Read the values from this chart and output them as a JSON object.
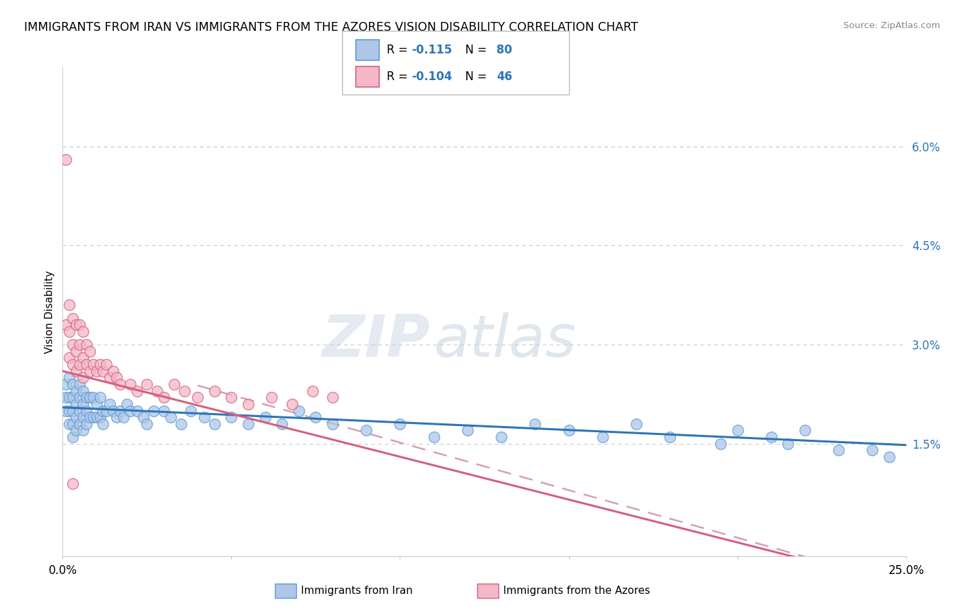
{
  "title": "IMMIGRANTS FROM IRAN VS IMMIGRANTS FROM THE AZORES VISION DISABILITY CORRELATION CHART",
  "source": "Source: ZipAtlas.com",
  "ylabel": "Vision Disability",
  "right_yticks": [
    0.015,
    0.03,
    0.045,
    0.06
  ],
  "right_ytick_labels": [
    "1.5%",
    "3.0%",
    "4.5%",
    "6.0%"
  ],
  "xlim": [
    0.0,
    0.25
  ],
  "ylim": [
    -0.002,
    0.072
  ],
  "iran_fill_color": "#aec6e8",
  "iran_edge_color": "#5b9bd5",
  "azores_fill_color": "#f4b8c8",
  "azores_edge_color": "#d4607e",
  "iran_line_color": "#2e75b6",
  "azores_line_color": "#d4607e",
  "dashed_line_color": "#d4a0b0",
  "iran_R": -0.115,
  "iran_N": 80,
  "azores_R": -0.104,
  "azores_N": 46,
  "watermark_zip": "ZIP",
  "watermark_atlas": "atlas",
  "legend_label_iran": "Immigrants from Iran",
  "legend_label_azores": "Immigrants from the Azores",
  "blue_text_color": "#2e75b6",
  "iran_x": [
    0.001,
    0.001,
    0.001,
    0.002,
    0.002,
    0.002,
    0.002,
    0.003,
    0.003,
    0.003,
    0.003,
    0.003,
    0.004,
    0.004,
    0.004,
    0.004,
    0.005,
    0.005,
    0.005,
    0.005,
    0.006,
    0.006,
    0.006,
    0.006,
    0.007,
    0.007,
    0.007,
    0.008,
    0.008,
    0.009,
    0.009,
    0.01,
    0.01,
    0.011,
    0.011,
    0.012,
    0.012,
    0.013,
    0.014,
    0.015,
    0.016,
    0.017,
    0.018,
    0.019,
    0.02,
    0.022,
    0.024,
    0.025,
    0.027,
    0.03,
    0.032,
    0.035,
    0.038,
    0.042,
    0.045,
    0.05,
    0.055,
    0.06,
    0.065,
    0.07,
    0.075,
    0.08,
    0.09,
    0.1,
    0.11,
    0.12,
    0.13,
    0.14,
    0.15,
    0.16,
    0.17,
    0.18,
    0.195,
    0.2,
    0.21,
    0.215,
    0.22,
    0.23,
    0.24,
    0.245
  ],
  "iran_y": [
    0.024,
    0.022,
    0.02,
    0.025,
    0.022,
    0.02,
    0.018,
    0.024,
    0.022,
    0.02,
    0.018,
    0.016,
    0.023,
    0.021,
    0.019,
    0.017,
    0.024,
    0.022,
    0.02,
    0.018,
    0.023,
    0.021,
    0.019,
    0.017,
    0.022,
    0.02,
    0.018,
    0.022,
    0.019,
    0.022,
    0.019,
    0.021,
    0.019,
    0.022,
    0.019,
    0.02,
    0.018,
    0.02,
    0.021,
    0.02,
    0.019,
    0.02,
    0.019,
    0.021,
    0.02,
    0.02,
    0.019,
    0.018,
    0.02,
    0.02,
    0.019,
    0.018,
    0.02,
    0.019,
    0.018,
    0.019,
    0.018,
    0.019,
    0.018,
    0.02,
    0.019,
    0.018,
    0.017,
    0.018,
    0.016,
    0.017,
    0.016,
    0.018,
    0.017,
    0.016,
    0.018,
    0.016,
    0.015,
    0.017,
    0.016,
    0.015,
    0.017,
    0.014,
    0.014,
    0.013
  ],
  "azores_x": [
    0.001,
    0.001,
    0.002,
    0.002,
    0.002,
    0.003,
    0.003,
    0.003,
    0.004,
    0.004,
    0.004,
    0.005,
    0.005,
    0.005,
    0.006,
    0.006,
    0.006,
    0.007,
    0.007,
    0.008,
    0.008,
    0.009,
    0.01,
    0.011,
    0.012,
    0.013,
    0.014,
    0.015,
    0.016,
    0.017,
    0.02,
    0.022,
    0.025,
    0.028,
    0.03,
    0.033,
    0.036,
    0.04,
    0.045,
    0.05,
    0.055,
    0.062,
    0.068,
    0.074,
    0.08,
    0.003
  ],
  "azores_y": [
    0.058,
    0.033,
    0.036,
    0.032,
    0.028,
    0.034,
    0.03,
    0.027,
    0.033,
    0.029,
    0.026,
    0.033,
    0.03,
    0.027,
    0.032,
    0.028,
    0.025,
    0.03,
    0.027,
    0.029,
    0.026,
    0.027,
    0.026,
    0.027,
    0.026,
    0.027,
    0.025,
    0.026,
    0.025,
    0.024,
    0.024,
    0.023,
    0.024,
    0.023,
    0.022,
    0.024,
    0.023,
    0.022,
    0.023,
    0.022,
    0.021,
    0.022,
    0.021,
    0.023,
    0.022,
    0.009
  ]
}
